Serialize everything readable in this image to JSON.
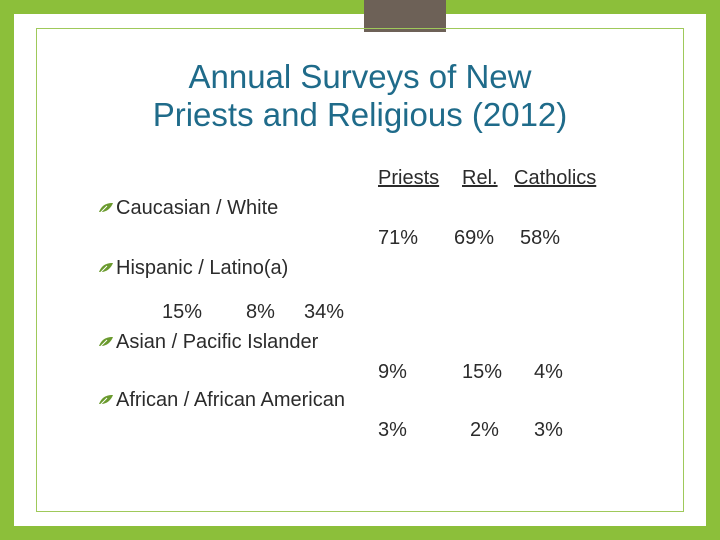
{
  "slide": {
    "title_line1": "Annual Surveys of New",
    "title_line2": "Priests and Religious (2012)"
  },
  "headers": {
    "col1": "Priests",
    "col2": "Rel.",
    "col3": "Catholics"
  },
  "bullets": {
    "b1": "Caucasian / White",
    "b2": "Hispanic / Latino(a)",
    "b3": "Asian / Pacific Islander",
    "b4": "African / African American"
  },
  "values": {
    "caucasian": [
      "71%",
      "69%",
      "58%"
    ],
    "hispanic": [
      "15%",
      "8%",
      "34%"
    ],
    "asian": [
      "9%",
      "15%",
      "4%"
    ],
    "african": [
      "3%",
      "2%",
      "3%"
    ]
  },
  "colors": {
    "background": "#8cbf3a",
    "title": "#1f6b8a",
    "bullet": "#6a9a2e",
    "top_tab": "#6d6157"
  },
  "icons": {
    "bullet": "leaf-bullet-icon"
  }
}
